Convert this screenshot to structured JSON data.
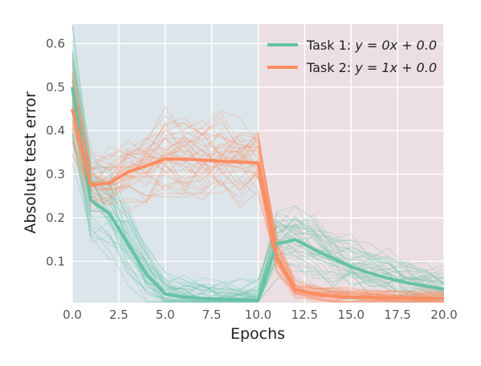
{
  "chart_data": {
    "type": "line",
    "xlabel": "Epochs",
    "ylabel": "Absolute test error",
    "xlim": [
      0,
      20
    ],
    "ylim": [
      0.005,
      0.645
    ],
    "x_ticks": [
      0,
      2.5,
      5,
      7.5,
      10,
      12.5,
      15,
      17.5,
      20
    ],
    "x_tick_labels": [
      "0.0",
      "2.5",
      "5.0",
      "7.5",
      "10.0",
      "12.5",
      "15.0",
      "17.5",
      "20.0"
    ],
    "y_ticks": [
      0.1,
      0.2,
      0.3,
      0.4,
      0.5,
      0.6
    ],
    "y_tick_labels": [
      "0.1",
      "0.2",
      "0.3",
      "0.4",
      "0.5",
      "0.6"
    ],
    "grid": true,
    "legend_position": "top-right",
    "task_phases": [
      {
        "x_start": 0,
        "x_end": 10,
        "color": "#dbe5ea"
      },
      {
        "x_start": 10,
        "x_end": 20,
        "color": "#ecdfe3"
      }
    ],
    "x": [
      0,
      1,
      2,
      3,
      4,
      5,
      6,
      7,
      8,
      9,
      10,
      11,
      12,
      13,
      14,
      15,
      16,
      17,
      18,
      19,
      20
    ],
    "series": [
      {
        "name": "Task 1: y = 0x + 0.0",
        "legend_prefix": "Task 1: ",
        "legend_math": "y = 0x + 0.0",
        "color": "#66c2a5",
        "mean": [
          0.5,
          0.24,
          0.21,
          0.14,
          0.07,
          0.025,
          0.018,
          0.015,
          0.013,
          0.012,
          0.011,
          0.14,
          0.15,
          0.128,
          0.107,
          0.088,
          0.073,
          0.061,
          0.051,
          0.043,
          0.036
        ]
      },
      {
        "name": "Task 2: y = 1x + 0.0",
        "legend_prefix": "Task 2: ",
        "legend_math": "y = 1x + 0.0",
        "color": "#fc8d62",
        "mean": [
          0.45,
          0.275,
          0.28,
          0.305,
          0.32,
          0.335,
          0.335,
          0.333,
          0.33,
          0.328,
          0.326,
          0.11,
          0.035,
          0.025,
          0.02,
          0.018,
          0.017,
          0.016,
          0.015,
          0.015,
          0.015
        ]
      }
    ]
  }
}
